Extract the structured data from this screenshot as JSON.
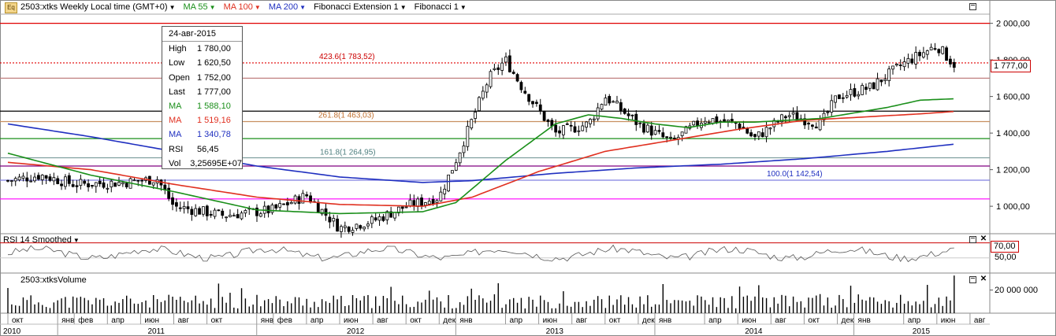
{
  "header": {
    "symbol_title": "2503:xtks Weekly Local time (GMT+0)",
    "ma55": "MA 55",
    "ma100": "MA 100",
    "ma200": "MA 200",
    "fib_ext": "Fibonacci Extension 1",
    "fib": "Fibonacci 1",
    "ma55_color": "#1a8f1a",
    "ma100_color": "#e03020",
    "ma200_color": "#2030c0"
  },
  "info_box": {
    "date": "24-авг-2015",
    "rows": [
      {
        "k": "High",
        "v": "1 780,00",
        "color": "#000000"
      },
      {
        "k": "Low",
        "v": "1 620,50",
        "color": "#000000"
      },
      {
        "k": "Open",
        "v": "1 752,00",
        "color": "#000000"
      },
      {
        "k": "Last",
        "v": "1 777,00",
        "color": "#000000"
      },
      {
        "k": "MA",
        "v": "1 588,10",
        "color": "#1a8f1a"
      },
      {
        "k": "MA",
        "v": "1 519,16",
        "color": "#e03020"
      },
      {
        "k": "MA",
        "v": "1 340,78",
        "color": "#2030c0"
      },
      {
        "k": "RSI",
        "v": "56,45",
        "color": "#000000"
      },
      {
        "k": "Vol",
        "v": "3,25695E+07",
        "color": "#000000"
      }
    ]
  },
  "rsi_panel": {
    "title": "RSI 14 Smoothed",
    "level_label": "70,00",
    "axis_label": "50,00"
  },
  "volume_panel": {
    "title": "2503:xtksVolume",
    "axis_label": "20 000 000"
  },
  "price_box": "1 777,00",
  "chart_data": {
    "type": "candlestick",
    "interval": "weekly",
    "y_axis": {
      "min": 850,
      "max": 2050,
      "ticks": [
        "1 000,00",
        "1 200,00",
        "1 400,00",
        "1 600,00",
        "1 800,00",
        "2 000,00"
      ],
      "tick_values": [
        1000,
        1200,
        1400,
        1600,
        1800,
        2000
      ]
    },
    "x_axis": {
      "months": [
        "окт",
        "янв",
        "фев",
        "апр",
        "июн",
        "авг",
        "окт",
        "янв",
        "фев",
        "апр",
        "июн",
        "авг",
        "окт",
        "дек",
        "янв",
        "апр",
        "июн",
        "авг",
        "окт",
        "дек",
        "янв",
        "апр",
        "июн",
        "авг",
        "окт",
        "дек",
        "янв",
        "апр",
        "июн",
        "авг"
      ],
      "month_index": [
        0,
        3,
        4,
        6,
        8,
        10,
        12,
        15,
        16,
        18,
        20,
        22,
        24,
        26,
        27,
        30,
        32,
        34,
        36,
        38,
        39,
        42,
        44,
        46,
        48,
        50,
        51,
        54,
        56,
        58
      ],
      "years": [
        "2010",
        "2011",
        "2012",
        "2013",
        "2014",
        "2015"
      ],
      "year_start_index": [
        -3,
        3,
        15,
        27,
        39,
        51
      ]
    },
    "close_anchors": [
      [
        0,
        1140
      ],
      [
        2,
        1170
      ],
      [
        4,
        1120
      ],
      [
        7,
        1130
      ],
      [
        9,
        1150
      ],
      [
        10,
        1000
      ],
      [
        13,
        950
      ],
      [
        16,
        980
      ],
      [
        18,
        1060
      ],
      [
        20,
        880
      ],
      [
        22,
        920
      ],
      [
        24,
        1000
      ],
      [
        26,
        1050
      ],
      [
        27,
        1250
      ],
      [
        29,
        1700
      ],
      [
        30,
        1800
      ],
      [
        31,
        1650
      ],
      [
        33,
        1400
      ],
      [
        35,
        1450
      ],
      [
        36,
        1600
      ],
      [
        38,
        1450
      ],
      [
        40,
        1350
      ],
      [
        42,
        1480
      ],
      [
        44,
        1450
      ],
      [
        45,
        1370
      ],
      [
        47,
        1500
      ],
      [
        49,
        1450
      ],
      [
        50,
        1600
      ],
      [
        52,
        1650
      ],
      [
        54,
        1780
      ],
      [
        56,
        1880
      ],
      [
        57,
        1777
      ]
    ],
    "ma55": [
      [
        0,
        1290
      ],
      [
        5,
        1170
      ],
      [
        10,
        1080
      ],
      [
        15,
        980
      ],
      [
        20,
        960
      ],
      [
        25,
        970
      ],
      [
        27,
        1020
      ],
      [
        30,
        1250
      ],
      [
        33,
        1450
      ],
      [
        35,
        1500
      ],
      [
        37,
        1480
      ],
      [
        39,
        1450
      ],
      [
        41,
        1430
      ],
      [
        43,
        1460
      ],
      [
        45,
        1460
      ],
      [
        47,
        1470
      ],
      [
        49,
        1480
      ],
      [
        51,
        1510
      ],
      [
        53,
        1540
      ],
      [
        55,
        1580
      ],
      [
        57.2,
        1588
      ]
    ],
    "ma100": [
      [
        0,
        1240
      ],
      [
        5,
        1200
      ],
      [
        10,
        1120
      ],
      [
        15,
        1050
      ],
      [
        20,
        1010
      ],
      [
        25,
        1000
      ],
      [
        28,
        1050
      ],
      [
        32,
        1190
      ],
      [
        36,
        1300
      ],
      [
        40,
        1360
      ],
      [
        44,
        1420
      ],
      [
        48,
        1470
      ],
      [
        52,
        1490
      ],
      [
        55,
        1505
      ],
      [
        57.2,
        1519
      ]
    ],
    "ma200": [
      [
        0,
        1450
      ],
      [
        5,
        1380
      ],
      [
        10,
        1300
      ],
      [
        15,
        1220
      ],
      [
        20,
        1160
      ],
      [
        25,
        1130
      ],
      [
        28,
        1140
      ],
      [
        33,
        1180
      ],
      [
        38,
        1210
      ],
      [
        43,
        1230
      ],
      [
        48,
        1260
      ],
      [
        53,
        1300
      ],
      [
        57.2,
        1341
      ]
    ],
    "horizontal_levels": [
      {
        "value": 2000,
        "color": "#e00000",
        "style": "solid",
        "label": ""
      },
      {
        "value": 1783.52,
        "color": "#e00000",
        "style": "dotted",
        "label": "423.6(1 783,52)"
      },
      {
        "value": 1700,
        "color": "#c08080",
        "style": "solid",
        "label": ""
      },
      {
        "value": 1520,
        "color": "#000000",
        "style": "solid",
        "label": ""
      },
      {
        "value": 1463.03,
        "color": "#c89060",
        "style": "solid",
        "label": "261.8(1 463,03)"
      },
      {
        "value": 1370,
        "color": "#1a8f1a",
        "style": "solid",
        "label": ""
      },
      {
        "value": 1264.95,
        "color": "#80a0a0",
        "style": "solid",
        "label": "161.8(1 264,95)"
      },
      {
        "value": 1220,
        "color": "#800080",
        "style": "solid",
        "label": ""
      },
      {
        "value": 1142.54,
        "color": "#8080e0",
        "style": "solid",
        "label": "100.0(1 142,54)"
      },
      {
        "value": 1040,
        "color": "#ff00ff",
        "style": "solid",
        "label": ""
      }
    ],
    "rsi": {
      "period": 14,
      "level": 70,
      "min": 30,
      "max": 80
    },
    "volume": {
      "axis_value": 20000000,
      "max": 32000000,
      "last": 32569500
    }
  }
}
